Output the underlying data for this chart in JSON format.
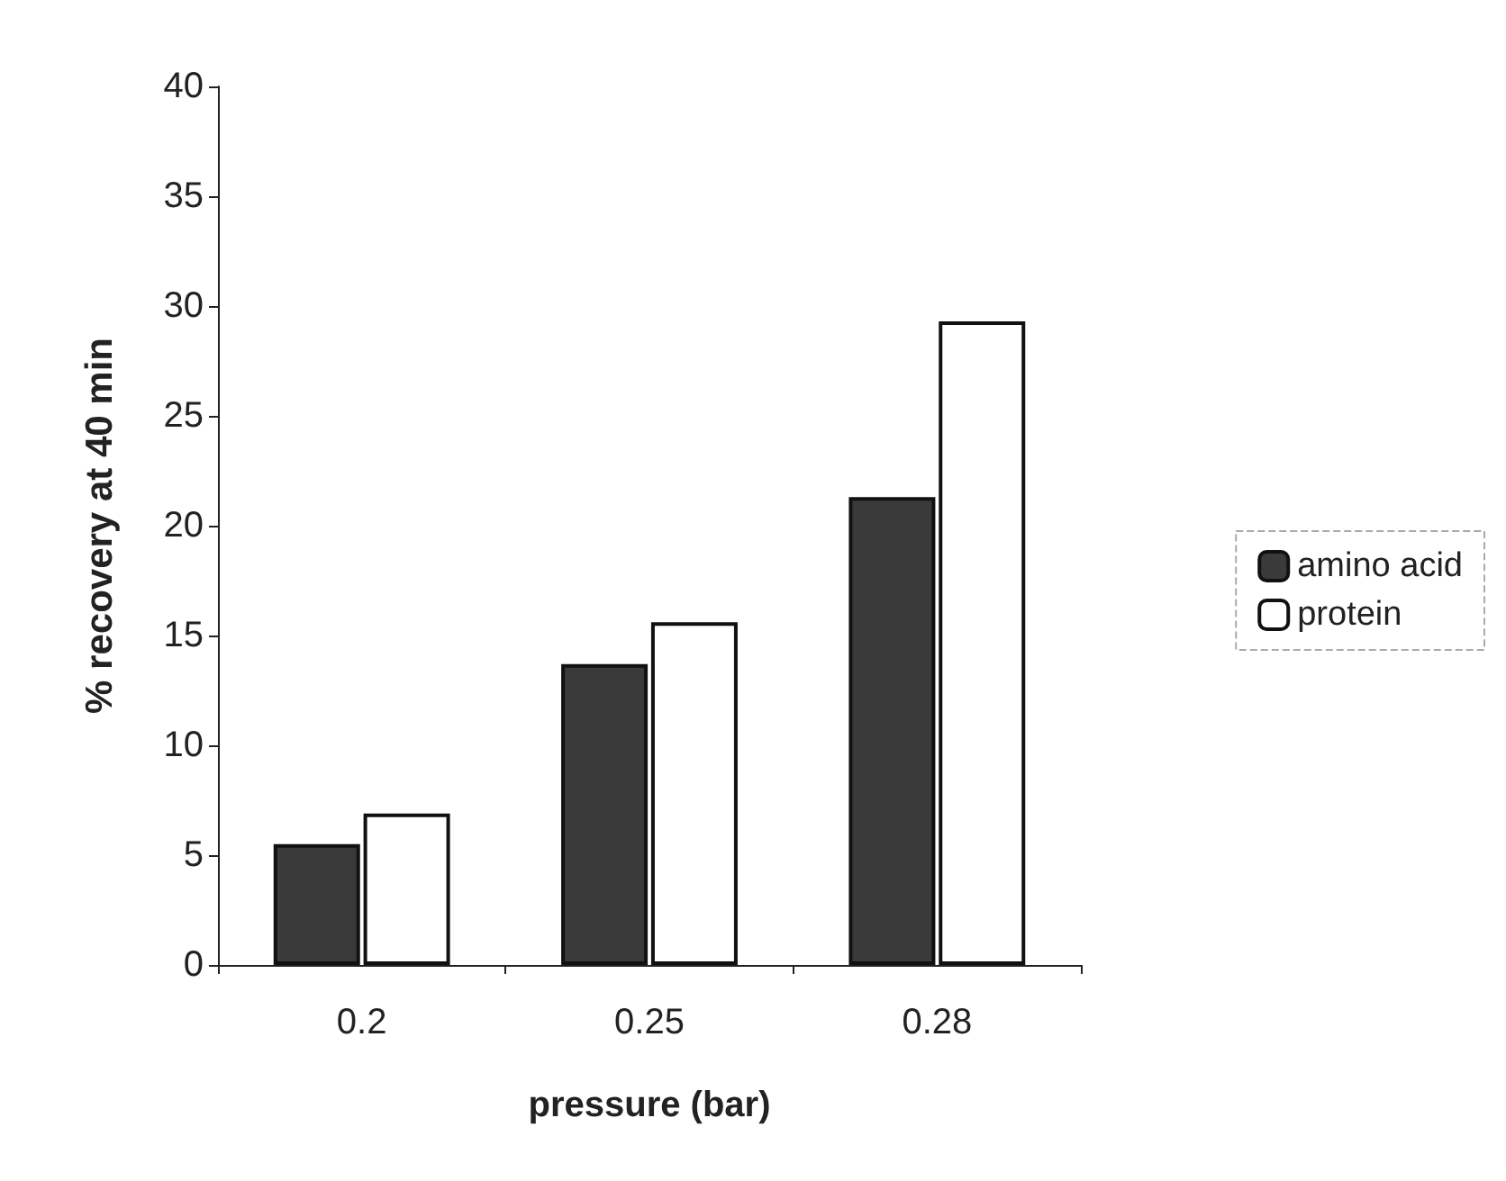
{
  "chart_data": {
    "type": "bar",
    "xlabel": "pressure (bar)",
    "ylabel": "% recovery at 40 min",
    "categories": [
      "0.2",
      "0.25",
      "0.28"
    ],
    "series": [
      {
        "name": "amino acid",
        "color": "#3a3a3a",
        "values": [
          5.5,
          13.7,
          21.3
        ]
      },
      {
        "name": "protein",
        "color": "#ffffff",
        "values": [
          6.9,
          15.6,
          29.3
        ]
      }
    ],
    "ylim": [
      0,
      40
    ],
    "yticks": [
      0,
      5,
      10,
      15,
      20,
      25,
      30,
      35,
      40
    ],
    "grid": false,
    "legend": "right"
  }
}
